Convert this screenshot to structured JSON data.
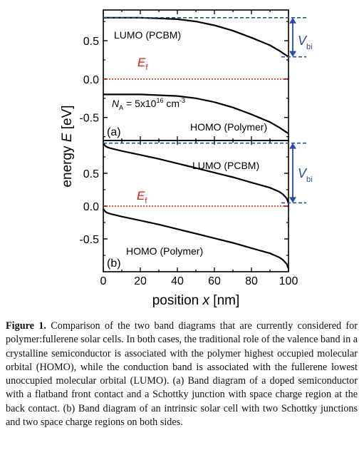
{
  "figure": {
    "colors": {
      "curve": "#000000",
      "fermi": "#e8161b",
      "vbi": "#2a4aa8"
    },
    "panel_a": {
      "label": "(a)",
      "chart_data": {
        "type": "line",
        "xlim": [
          0,
          100
        ],
        "ylim": [
          -0.8,
          0.9
        ],
        "yticks": [
          -0.5,
          0.0,
          0.5
        ],
        "ytick_labels": [
          "-0.5",
          "0.0",
          "0.5"
        ],
        "series": [
          {
            "name": "LUMO (PCBM)",
            "x": [
              0,
              10,
              20,
              30,
              40,
              50,
              60,
              70,
              80,
              90,
              95,
              100
            ],
            "y": [
              0.8,
              0.8,
              0.8,
              0.79,
              0.78,
              0.75,
              0.7,
              0.63,
              0.54,
              0.44,
              0.37,
              0.29
            ]
          },
          {
            "name": "HOMO (Polymer)",
            "x": [
              0,
              10,
              20,
              30,
              40,
              50,
              60,
              70,
              80,
              90,
              95,
              100
            ],
            "y": [
              -0.2,
              -0.2,
              -0.2,
              -0.21,
              -0.22,
              -0.25,
              -0.3,
              -0.37,
              -0.46,
              -0.56,
              -0.63,
              -0.71
            ]
          },
          {
            "name": "Ef",
            "x": [
              0,
              100
            ],
            "y": [
              0,
              0
            ]
          }
        ],
        "ref_line": {
          "y": 0.8
        },
        "vbi": {
          "from": 0.29,
          "to": 0.8
        }
      },
      "labels": {
        "lumo": "LUMO (PCBM)",
        "homo": "HOMO (Polymer)",
        "ef_main": "E",
        "ef_sub": "f",
        "na_pre": "N",
        "na_sub": "A",
        "na_eq": " = 5x10",
        "na_exp": "16",
        "na_unit": " cm",
        "na_unit_exp": "-3",
        "vbi_main": "V",
        "vbi_sub": "bi"
      }
    },
    "panel_b": {
      "label": "(b)",
      "chart_data": {
        "type": "line",
        "xlim": [
          0,
          100
        ],
        "ylim": [
          -1.0,
          1.0
        ],
        "yticks": [
          -0.5,
          0.0,
          0.5
        ],
        "ytick_labels": [
          "-0.5",
          "0.0",
          "0.5"
        ],
        "xticks": [
          0,
          20,
          40,
          60,
          80,
          100
        ],
        "xtick_labels": [
          "0",
          "20",
          "40",
          "60",
          "80",
          "100"
        ],
        "series": [
          {
            "name": "LUMO (PCBM)",
            "x": [
              0,
              1,
              2,
              4,
              10,
              20,
              30,
              40,
              50,
              60,
              70,
              80,
              90,
              95,
              97,
              99,
              100
            ],
            "y": [
              0.96,
              0.92,
              0.9,
              0.88,
              0.84,
              0.78,
              0.72,
              0.65,
              0.58,
              0.51,
              0.44,
              0.36,
              0.28,
              0.22,
              0.18,
              0.12,
              0.05
            ]
          },
          {
            "name": "HOMO (Polymer)",
            "x": [
              0,
              1,
              2,
              4,
              10,
              20,
              30,
              40,
              50,
              60,
              70,
              80,
              90,
              95,
              97,
              99,
              100
            ],
            "y": [
              -0.04,
              -0.08,
              -0.1,
              -0.12,
              -0.16,
              -0.22,
              -0.28,
              -0.35,
              -0.42,
              -0.49,
              -0.56,
              -0.64,
              -0.72,
              -0.78,
              -0.82,
              -0.88,
              -0.95
            ]
          },
          {
            "name": "Ef",
            "x": [
              0,
              100
            ],
            "y": [
              0,
              0
            ]
          }
        ],
        "ref_line": {
          "y": 0.96
        },
        "vbi": {
          "from": 0.05,
          "to": 0.96
        }
      },
      "labels": {
        "lumo": "LUMO (PCBM)",
        "homo": "HOMO (Polymer)",
        "ef_main": "E",
        "ef_sub": "f",
        "vbi_main": "V",
        "vbi_sub": "bi"
      }
    },
    "ylabel_main": "energy ",
    "ylabel_var": "E",
    "ylabel_unit": " [eV]",
    "xlabel_main": "position ",
    "xlabel_var": "x",
    "xlabel_unit": " [nm]"
  },
  "caption": {
    "lead": "Figure 1.",
    "text": " Comparison of the two band diagrams that are currently considered for polymer:fullerene solar cells. In both cases, the traditional role of the valence band in a crystalline semiconductor is associated with the polymer highest occupied molecular orbital (HOMO), while the conduction band is associated with the fullerene lowest unoccupied molecular orbital (LUMO). (a) Band diagram of a doped semiconductor with a flatband front contact and a Schottky junction with space charge region at the back contact. (b) Band diagram of an intrinsic solar cell with two Schottky junctions and two space charge regions on both sides."
  }
}
